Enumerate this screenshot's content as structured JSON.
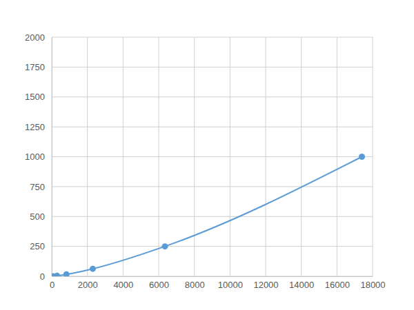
{
  "chart_data": {
    "type": "line",
    "x": [
      80,
      300,
      820,
      2300,
      6350,
      17400
    ],
    "values": [
      0,
      3.9,
      15.6,
      62.5,
      250,
      1000
    ],
    "color": "#5b9bd5",
    "marker": "circle",
    "line_style": "solid",
    "xlim": [
      0,
      18000
    ],
    "xticks": [
      0,
      2000,
      4000,
      6000,
      8000,
      10000,
      12000,
      14000,
      16000,
      18000
    ],
    "ylim": [
      0,
      2000
    ],
    "yticks": [
      0,
      250,
      500,
      750,
      1000,
      1250,
      1500,
      1750,
      2000
    ],
    "grid": true
  }
}
